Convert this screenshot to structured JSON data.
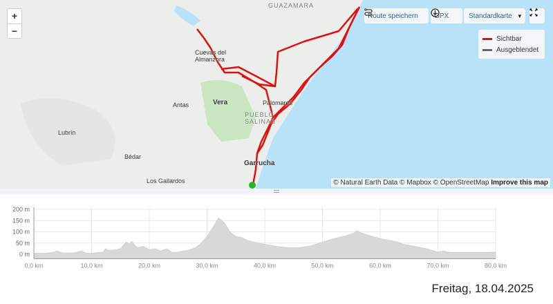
{
  "map": {
    "zoom_in": "+",
    "zoom_out": "−",
    "labels": {
      "guazamara": "GUAZAMARA",
      "cuevas1": "Cuevas del",
      "cuevas2": "Almanzora",
      "vera": "Vera",
      "antas": "Antas",
      "palomares": "Palomares",
      "pueblo1": "PUEBLO",
      "pueblo2": "SALINAS",
      "lubrin": "Lubrín",
      "bedar": "Bédar",
      "garrucha": "Garrucha",
      "gallardos": "Los Gallardos"
    },
    "toolbar": {
      "save_route": "Route speichern",
      "gpx": "GPX",
      "map_style": "Standardkarte",
      "fullscreen_icon": "fullscreen-icon"
    },
    "legend": {
      "visible": "Sichtbar",
      "hidden": "Ausgeblendet",
      "visible_color": "#e01010",
      "hidden_color": "#666666"
    },
    "attribution": {
      "text": "© Natural Earth Data © Mapbox © OpenStreetMap",
      "improve": "Improve this map"
    },
    "route_color": "#e01010",
    "start_marker_color": "#1fb82a",
    "sea_color": "#b8e2f8"
  },
  "chart_data": {
    "type": "area",
    "xlabel": "",
    "ylabel": "",
    "xlim": [
      0,
      80
    ],
    "ylim": [
      -20,
      200
    ],
    "x_ticks": [
      "0,0 km",
      "10,0 km",
      "20,0 km",
      "30,0 km",
      "40,0 km",
      "50,0 km",
      "60,0 km",
      "70,0 km",
      "80,0 km"
    ],
    "y_ticks": [
      "200 m",
      "150 m",
      "100 m",
      "50 m",
      "0 m"
    ],
    "grid": true,
    "fill_color": "#d8d8d8",
    "x": [
      0,
      2,
      3.5,
      4,
      5,
      7,
      8.3,
      9,
      10,
      12,
      12.4,
      13,
      14,
      15,
      16,
      16.5,
      17,
      17.5,
      18,
      19,
      20,
      21,
      22,
      23,
      24,
      25,
      26,
      27,
      28,
      29,
      30,
      31,
      32,
      33,
      34,
      35,
      36,
      37,
      38,
      40,
      42,
      44,
      46,
      48,
      50,
      52,
      54,
      55.5,
      56,
      57,
      58,
      60,
      62,
      63,
      64,
      66,
      68,
      70,
      71,
      72,
      74,
      76,
      78,
      80
    ],
    "y": [
      5,
      5,
      10,
      15,
      6,
      6,
      15,
      5,
      5,
      10,
      25,
      18,
      20,
      25,
      55,
      45,
      58,
      40,
      30,
      35,
      20,
      25,
      15,
      25,
      8,
      10,
      15,
      20,
      30,
      50,
      80,
      120,
      162,
      140,
      100,
      80,
      75,
      62,
      55,
      45,
      35,
      30,
      30,
      38,
      55,
      70,
      82,
      95,
      105,
      92,
      85,
      70,
      60,
      55,
      45,
      35,
      25,
      10,
      15,
      8,
      8,
      8,
      8,
      10
    ]
  },
  "footer": {
    "date": "Freitag, 18.04.2025"
  }
}
